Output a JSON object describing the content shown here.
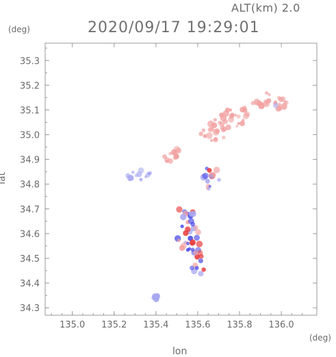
{
  "chart_data": {
    "type": "heatmap",
    "title": "2020/09/17 19:29:01",
    "altitude_label": "ALT(km)  2.0",
    "xlabel": "lon",
    "ylabel": "lat",
    "x_unit": "(deg)",
    "y_unit": "(deg)",
    "xlim": [
      134.87,
      136.17
    ],
    "ylim": [
      34.27,
      35.37
    ],
    "x_ticks": [
      135.0,
      135.2,
      135.4,
      135.6,
      135.8,
      136.0
    ],
    "x_tick_labels": [
      "135.0",
      "135.2",
      "135.4",
      "135.6",
      "135.8",
      "136.0"
    ],
    "y_ticks": [
      34.3,
      34.4,
      34.5,
      34.6,
      34.7,
      34.8,
      34.9,
      35.0,
      35.1,
      35.2,
      35.3
    ],
    "y_tick_labels": [
      "34.3",
      "34.4",
      "34.5",
      "34.6",
      "34.7",
      "34.8",
      "34.9",
      "35.0",
      "35.1",
      "35.2",
      "35.3"
    ],
    "grid": false,
    "colors": {
      "positive": "#f2a0a0",
      "positive_strong": "#e83c3c",
      "negative": "#a8a8f2",
      "negative_strong": "#4a4ae8",
      "axis": "#9a9a9a"
    },
    "regions": [
      {
        "lon": 135.68,
        "lat": 35.02,
        "rx": 0.07,
        "ry": 0.05,
        "value": 0.25
      },
      {
        "lon": 135.78,
        "lat": 35.08,
        "rx": 0.07,
        "ry": 0.05,
        "value": 0.2
      },
      {
        "lon": 135.9,
        "lat": 35.15,
        "rx": 0.05,
        "ry": 0.04,
        "value": 0.2
      },
      {
        "lon": 136.0,
        "lat": 35.12,
        "rx": 0.04,
        "ry": 0.03,
        "value": 0.15
      },
      {
        "lon": 135.47,
        "lat": 34.92,
        "rx": 0.06,
        "ry": 0.03,
        "value": 0.2
      },
      {
        "lon": 135.32,
        "lat": 34.84,
        "rx": 0.06,
        "ry": 0.025,
        "value": -0.2
      },
      {
        "lon": 135.55,
        "lat": 34.68,
        "rx": 0.05,
        "ry": 0.04,
        "value": -0.1
      },
      {
        "lon": 135.56,
        "lat": 34.58,
        "rx": 0.07,
        "ry": 0.06,
        "value": 0.05
      },
      {
        "lon": 135.6,
        "lat": 34.48,
        "rx": 0.04,
        "ry": 0.05,
        "value": -0.05
      },
      {
        "lon": 135.66,
        "lat": 34.83,
        "rx": 0.05,
        "ry": 0.05,
        "value": -0.05
      },
      {
        "lon": 135.4,
        "lat": 34.34,
        "rx": 0.01,
        "ry": 0.01,
        "value": -0.3
      }
    ]
  }
}
